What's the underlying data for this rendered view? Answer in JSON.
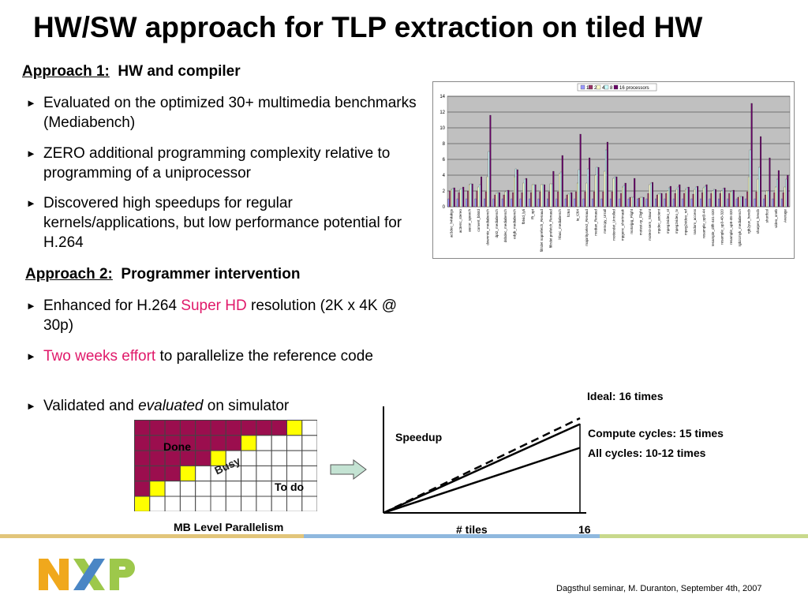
{
  "slide": {
    "title": "HW/SW approach for TLP extraction on tiled HW",
    "approach1": {
      "label": "Approach 1:",
      "text": "HW and compiler"
    },
    "bullets1": [
      "Evaluated on the optimized 30+ multimedia benchmarks (Mediabench)",
      "ZERO additional programming complexity relative to programming of a uniprocessor",
      "Discovered high speedups for regular kernels/applications, but low performance potential for H.264"
    ],
    "approach2": {
      "label": "Approach 2:",
      "text": "Programmer intervention"
    },
    "bullets2": {
      "b1_pre": "Enhanced for H.264 ",
      "b1_red": "Super HD",
      "b1_post": " resolution (2K x 4K @ 30p)",
      "b2_red": "Two weeks effort",
      "b2_post": " to parallelize the reference code",
      "b3_pre": "Validated and ",
      "b3_it": "evaluated",
      "b3_post": " on simulator"
    },
    "footer": "Dagsthul seminar, M. Duranton, September 4th, 2007",
    "logo_text": "NXP"
  },
  "mb_grid": {
    "caption": "MB Level Parallelism",
    "label_done": "Done",
    "label_busy": "Busy",
    "label_todo": "To do",
    "colors": {
      "done": "#9b0e4e",
      "busy": "#ffff00",
      "todo": "#ffffff"
    },
    "rows": [
      "DDDDDDDDDDBT",
      "DDDDDDDBTTTT",
      "DDDDDBTTTTTT",
      "DDDBTTTTTTTT",
      "DBTTTTTTTTTT",
      "BTTTTTTTTTTT"
    ]
  },
  "speedup": {
    "ylabel": "Speedup",
    "xlabel": "# tiles",
    "x_max_label": "16",
    "ideal_label": "Ideal: 16 times",
    "compute_label": "Compute cycles: 15 times",
    "all_label": "All cycles: 10-12 times",
    "lines": [
      {
        "name": "Ideal",
        "end_speedup": 16,
        "style": "dashed"
      },
      {
        "name": "Compute cycles",
        "end_speedup": 15,
        "style": "solid"
      },
      {
        "name": "All cycles",
        "end_speedup": 11,
        "style": "solid"
      }
    ],
    "y_max": 18
  },
  "chart_data": {
    "type": "bar",
    "legend": [
      "1",
      "2",
      "4",
      "8",
      "16 processors"
    ],
    "series_colors": [
      "#9999ff",
      "#993366",
      "#ffffcc",
      "#ccffff",
      "#660066"
    ],
    "ylim": [
      0,
      14
    ],
    "yticks": [
      "0",
      "2",
      "4",
      "6",
      "8",
      "10",
      "12",
      "14"
    ],
    "categories": [
      "ac3dec_h4Makgs",
      "ac3enc_stereo",
      "aucor_speech",
      "convert_bitstd",
      "downmix_mediabench",
      "dpt2_mediabench",
      "dsbdec_mediabench",
      "edgb_mediabench",
      "fbtvid_lyti",
      "fft_opt",
      "filtrdet noprefetch_Renaud",
      "filtrdet prefetch_Renaud",
      "hfasc_mediabench",
      "h264",
      "ia_t264",
      "majorityselect_Renaud",
      "median_Renaud",
      "memcpy_Urrall",
      "motiondet_Unrolled",
      "mpgenc_shortmask",
      "motorjpg_Flight",
      "motest-rp_Flight",
      "motest-sem_Staunt",
      "mpdec_ancient",
      "mpeg2video_st",
      "mpeg2video_tv",
      "mpeg2video_ref",
      "random_access",
      "resample_opt3-44",
      "resample_dtfft-441-320",
      "resample_up3-48-320",
      "resample_up8-48-320",
      "rgb2cmyk_mediabench",
      "rgb2yuv_hevcb",
      "sharpen_hevcb",
      "shortfcol",
      "video_oneb",
      "Average"
    ],
    "series": [
      {
        "name": "1",
        "values": [
          1,
          1,
          1,
          1,
          1,
          1,
          1,
          1,
          1,
          1,
          1,
          1,
          1,
          1,
          1,
          1,
          1,
          1,
          1,
          1,
          1,
          1,
          1,
          1,
          1,
          1,
          1,
          1,
          1,
          1,
          1,
          1,
          1,
          1,
          1,
          1,
          1,
          1
        ]
      },
      {
        "name": "2",
        "values": [
          2,
          1.8,
          2,
          2,
          1.9,
          1.5,
          1.5,
          1.8,
          1.8,
          1.8,
          1.9,
          1.9,
          1.9,
          1.5,
          1.9,
          1.9,
          1.9,
          1.9,
          1.9,
          1.7,
          1.2,
          1.1,
          1.7,
          1.5,
          1.7,
          1.7,
          1.7,
          1.6,
          1.8,
          1.7,
          1.7,
          1.7,
          1.2,
          1.9,
          1.9,
          1.5,
          1.8,
          1.8
        ]
      },
      {
        "name": "4",
        "values": [
          2.2,
          2.2,
          2.8,
          2.5,
          3.8,
          1.7,
          1.9,
          3.8,
          3,
          2.8,
          2.8,
          2.9,
          4.2,
          1.6,
          3,
          3,
          4,
          4.5,
          3.6,
          2.5,
          1.2,
          1.2,
          2.8,
          1.6,
          2,
          2.2,
          2.2,
          2.2,
          2.4,
          2,
          2,
          1.9,
          1.3,
          3.8,
          3.5,
          2,
          2.5,
          2.5
        ]
      },
      {
        "name": "8",
        "values": [
          2.3,
          2.3,
          2.9,
          2.8,
          7,
          1.8,
          2,
          4.8,
          3.5,
          2.8,
          2.8,
          2.9,
          4.4,
          1.7,
          4.7,
          4.8,
          5,
          7.2,
          3.8,
          2.7,
          1.2,
          1.2,
          3,
          1.7,
          2.4,
          2.5,
          2.4,
          2.5,
          2.6,
          2.2,
          2.3,
          2,
          1.3,
          7.2,
          5,
          2,
          3.5,
          3.5
        ]
      },
      {
        "name": "16 processors",
        "values": [
          2.4,
          2.5,
          2.9,
          3.8,
          11.6,
          1.8,
          2.1,
          4.7,
          3.6,
          2.8,
          2.8,
          4.5,
          6.5,
          1.8,
          9.2,
          6.2,
          5,
          8.2,
          3.8,
          3,
          3.6,
          1.2,
          3.1,
          1.7,
          2.6,
          2.8,
          2.5,
          2.6,
          2.8,
          2.2,
          2.4,
          2.1,
          1.3,
          13.1,
          8.9,
          6.2,
          4.6,
          4
        ]
      }
    ]
  }
}
